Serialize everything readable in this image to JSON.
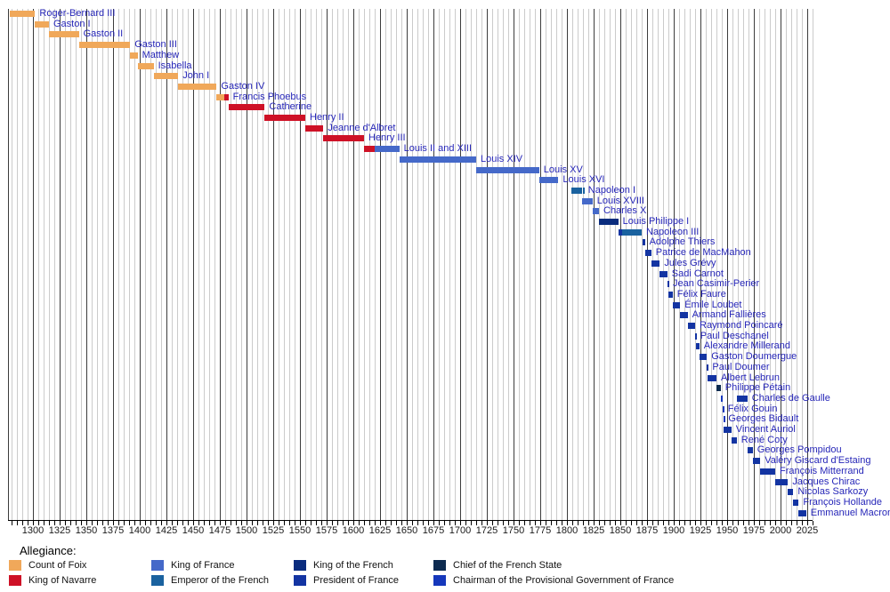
{
  "chart_data": {
    "type": "timeline",
    "x_axis": {
      "start": 1277,
      "end": 2030,
      "minor_step": 5,
      "major_step": 25,
      "tick_labels": [
        1300,
        1325,
        1350,
        1375,
        1400,
        1425,
        1450,
        1475,
        1500,
        1525,
        1550,
        1575,
        1600,
        1625,
        1650,
        1675,
        1700,
        1725,
        1750,
        1775,
        1800,
        1825,
        1850,
        1875,
        1900,
        1925,
        1950,
        1975,
        2000,
        2025
      ]
    },
    "legend": {
      "title": "Allegiance:",
      "items": [
        {
          "key": "foix",
          "label": "Count of Foix",
          "color": "#F0A85A"
        },
        {
          "key": "navarre",
          "label": "King of Navarre",
          "color": "#CE1126"
        },
        {
          "key": "france",
          "label": "King of France",
          "color": "#4569C9"
        },
        {
          "key": "emperor",
          "label": "Emperor of the French",
          "color": "#1A629F"
        },
        {
          "key": "king_french",
          "label": "King of the French",
          "color": "#0A2C7E"
        },
        {
          "key": "president",
          "label": "President of France",
          "color": "#1334A2"
        },
        {
          "key": "chief",
          "label": "Chief of the French State",
          "color": "#0D2B50"
        },
        {
          "key": "chairman",
          "label": "Chairman of the Provisional Government of France",
          "color": "#1638BC"
        }
      ]
    },
    "rulers": [
      {
        "name": "Roger-Bernard III",
        "segments": [
          {
            "start": 1278,
            "end": 1302,
            "allegiance": "foix"
          }
        ]
      },
      {
        "name": "Gaston I",
        "segments": [
          {
            "start": 1302,
            "end": 1315,
            "allegiance": "foix"
          }
        ]
      },
      {
        "name": "Gaston II",
        "segments": [
          {
            "start": 1315,
            "end": 1343,
            "allegiance": "foix"
          }
        ]
      },
      {
        "name": "Gaston III",
        "segments": [
          {
            "start": 1343,
            "end": 1391,
            "allegiance": "foix"
          }
        ]
      },
      {
        "name": "Matthew",
        "segments": [
          {
            "start": 1391,
            "end": 1398,
            "allegiance": "foix"
          }
        ]
      },
      {
        "name": "Isabella",
        "segments": [
          {
            "start": 1398,
            "end": 1413,
            "allegiance": "foix"
          }
        ]
      },
      {
        "name": "John I",
        "segments": [
          {
            "start": 1413,
            "end": 1436,
            "allegiance": "foix"
          }
        ]
      },
      {
        "name": "Gaston IV",
        "segments": [
          {
            "start": 1436,
            "end": 1472,
            "allegiance": "foix"
          }
        ]
      },
      {
        "name": "Francis Phoebus",
        "segments": [
          {
            "start": 1472,
            "end": 1479,
            "allegiance": "foix"
          },
          {
            "start": 1479,
            "end": 1483,
            "allegiance": "navarre"
          }
        ]
      },
      {
        "name": "Catherine",
        "segments": [
          {
            "start": 1483,
            "end": 1517,
            "allegiance": "navarre"
          }
        ]
      },
      {
        "name": "Henry II",
        "segments": [
          {
            "start": 1517,
            "end": 1555,
            "allegiance": "navarre"
          }
        ]
      },
      {
        "name": "Jeanne d'Albret",
        "segments": [
          {
            "start": 1555,
            "end": 1572,
            "allegiance": "navarre"
          }
        ]
      },
      {
        "name": "Henry III",
        "segments": [
          {
            "start": 1572,
            "end": 1610,
            "allegiance": "navarre"
          }
        ]
      },
      {
        "name": "Louis II and XIII",
        "segments": [
          {
            "start": 1610,
            "end": 1620,
            "allegiance": "navarre"
          },
          {
            "start": 1620,
            "end": 1643,
            "allegiance": "france"
          }
        ]
      },
      {
        "name": "Louis XIV",
        "segments": [
          {
            "start": 1643,
            "end": 1715,
            "allegiance": "france"
          }
        ]
      },
      {
        "name": "Louis XV",
        "segments": [
          {
            "start": 1715,
            "end": 1774,
            "allegiance": "france"
          }
        ]
      },
      {
        "name": "Louis XVI",
        "segments": [
          {
            "start": 1774,
            "end": 1792,
            "allegiance": "france"
          }
        ]
      },
      {
        "name": "Napoleon I",
        "segments": [
          {
            "start": 1804,
            "end": 1814,
            "allegiance": "emperor"
          },
          {
            "start": 1815,
            "end": 1815.7,
            "allegiance": "emperor"
          }
        ]
      },
      {
        "name": "Louis XVIII",
        "segments": [
          {
            "start": 1814,
            "end": 1824,
            "allegiance": "france"
          }
        ]
      },
      {
        "name": "Charles X",
        "segments": [
          {
            "start": 1824,
            "end": 1830,
            "allegiance": "france"
          }
        ]
      },
      {
        "name": "Louis Philippe I",
        "segments": [
          {
            "start": 1830,
            "end": 1848,
            "allegiance": "king_french"
          }
        ]
      },
      {
        "name": "Napoleon III",
        "segments": [
          {
            "start": 1848,
            "end": 1852,
            "allegiance": "president"
          },
          {
            "start": 1852,
            "end": 1870,
            "allegiance": "emperor"
          }
        ]
      },
      {
        "name": "Adolphe Thiers",
        "segments": [
          {
            "start": 1871,
            "end": 1873,
            "allegiance": "president"
          }
        ]
      },
      {
        "name": "Patrice de MacMahon",
        "segments": [
          {
            "start": 1873,
            "end": 1879,
            "allegiance": "president"
          }
        ]
      },
      {
        "name": "Jules Grévy",
        "segments": [
          {
            "start": 1879,
            "end": 1887,
            "allegiance": "president"
          }
        ]
      },
      {
        "name": "Sadi Carnot",
        "segments": [
          {
            "start": 1887,
            "end": 1894,
            "allegiance": "president"
          }
        ]
      },
      {
        "name": "Jean Casimir-Perier",
        "segments": [
          {
            "start": 1894,
            "end": 1895,
            "allegiance": "president"
          }
        ]
      },
      {
        "name": "Félix Faure",
        "segments": [
          {
            "start": 1895,
            "end": 1899,
            "allegiance": "president"
          }
        ]
      },
      {
        "name": "Émile Loubet",
        "segments": [
          {
            "start": 1899,
            "end": 1906,
            "allegiance": "president"
          }
        ]
      },
      {
        "name": "Armand Fallières",
        "segments": [
          {
            "start": 1906,
            "end": 1913,
            "allegiance": "president"
          }
        ]
      },
      {
        "name": "Raymond Poincaré",
        "segments": [
          {
            "start": 1913,
            "end": 1920,
            "allegiance": "president"
          }
        ]
      },
      {
        "name": "Paul Deschanel",
        "segments": [
          {
            "start": 1920,
            "end": 1920.7,
            "allegiance": "president"
          }
        ]
      },
      {
        "name": "Alexandre Millerand",
        "segments": [
          {
            "start": 1920.7,
            "end": 1924,
            "allegiance": "president"
          }
        ]
      },
      {
        "name": "Gaston Doumergue",
        "segments": [
          {
            "start": 1924,
            "end": 1931,
            "allegiance": "president"
          }
        ]
      },
      {
        "name": "Paul Doumer",
        "segments": [
          {
            "start": 1931,
            "end": 1932,
            "allegiance": "president"
          }
        ]
      },
      {
        "name": "Albert Lebrun",
        "segments": [
          {
            "start": 1932,
            "end": 1940,
            "allegiance": "president"
          }
        ]
      },
      {
        "name": "Philippe Pétain",
        "segments": [
          {
            "start": 1940,
            "end": 1944,
            "allegiance": "chief"
          }
        ]
      },
      {
        "name": "Charles de Gaulle",
        "segments": [
          {
            "start": 1944,
            "end": 1946,
            "allegiance": "chairman"
          },
          {
            "start": 1959,
            "end": 1969,
            "allegiance": "president"
          }
        ]
      },
      {
        "name": "Félix Gouin",
        "segments": [
          {
            "start": 1946,
            "end": 1946.5,
            "allegiance": "chairman"
          }
        ]
      },
      {
        "name": "Georges Bidault",
        "segments": [
          {
            "start": 1946.5,
            "end": 1947,
            "allegiance": "chairman"
          }
        ]
      },
      {
        "name": "Vincent Auriol",
        "segments": [
          {
            "start": 1947,
            "end": 1954,
            "allegiance": "president"
          }
        ]
      },
      {
        "name": "René Coty",
        "segments": [
          {
            "start": 1954,
            "end": 1959,
            "allegiance": "president"
          }
        ]
      },
      {
        "name": "Georges Pompidou",
        "segments": [
          {
            "start": 1969,
            "end": 1974,
            "allegiance": "president"
          }
        ]
      },
      {
        "name": "Valéry Giscard d'Estaing",
        "segments": [
          {
            "start": 1974,
            "end": 1981,
            "allegiance": "president"
          }
        ]
      },
      {
        "name": "François Mitterrand",
        "segments": [
          {
            "start": 1981,
            "end": 1995,
            "allegiance": "president"
          }
        ]
      },
      {
        "name": "Jacques Chirac",
        "segments": [
          {
            "start": 1995,
            "end": 2007,
            "allegiance": "president"
          }
        ]
      },
      {
        "name": "Nicolas Sarkozy",
        "segments": [
          {
            "start": 2007,
            "end": 2012,
            "allegiance": "president"
          }
        ]
      },
      {
        "name": "François Hollande",
        "segments": [
          {
            "start": 2012,
            "end": 2017,
            "allegiance": "president"
          }
        ]
      },
      {
        "name": "Emmanuel Macron",
        "segments": [
          {
            "start": 2017,
            "end": 2024,
            "allegiance": "president"
          }
        ]
      }
    ]
  }
}
